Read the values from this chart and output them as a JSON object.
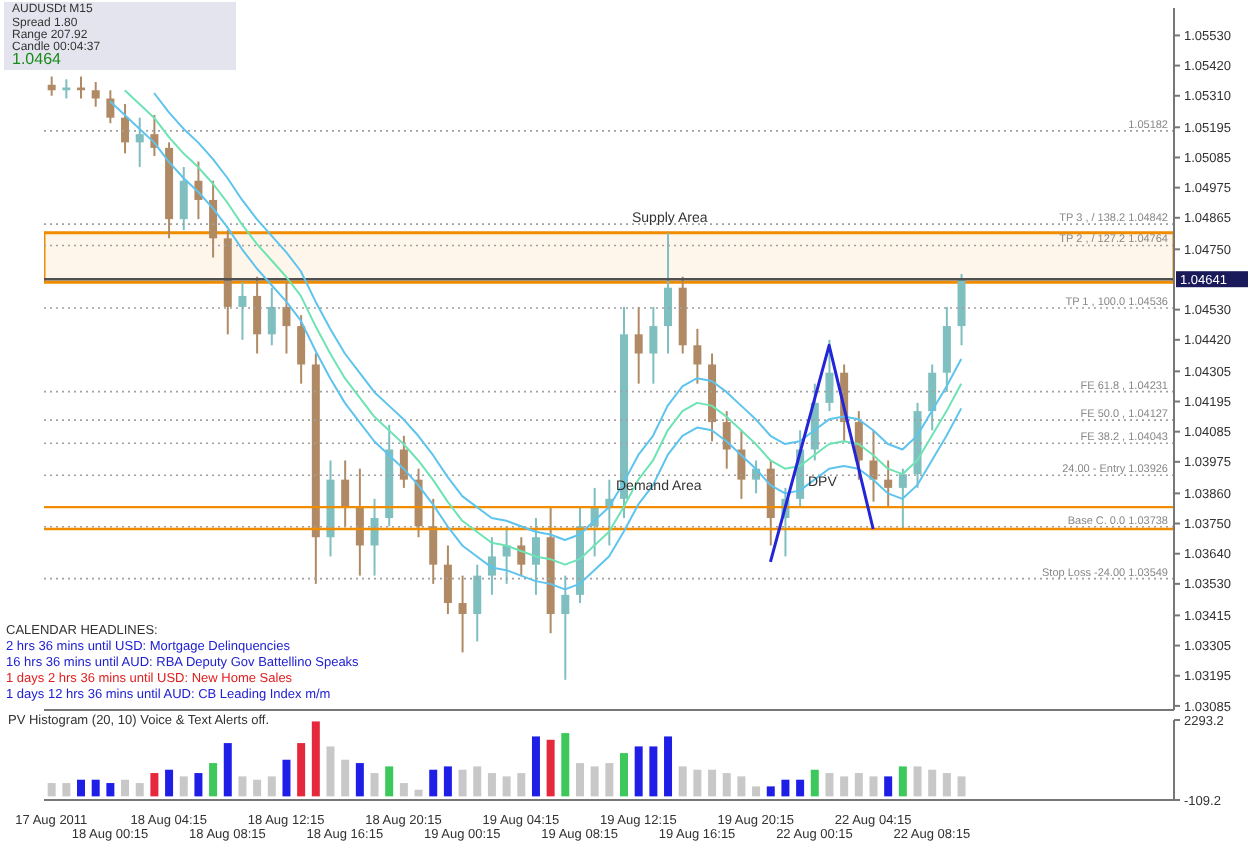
{
  "chart_data": [
    {
      "type": "candlestick",
      "title": "AUDUSDt  M15",
      "categories": [
        null,
        null,
        null,
        null,
        null,
        null,
        null,
        null,
        null,
        null,
        null,
        null,
        null,
        null,
        null,
        null,
        null,
        null,
        null,
        null,
        null,
        null,
        null,
        null,
        null,
        null,
        null,
        null,
        null,
        null,
        null,
        null,
        null,
        null,
        null,
        null,
        null,
        null,
        null,
        null,
        null,
        null,
        null,
        null,
        null,
        null,
        null,
        null,
        null,
        null,
        null,
        null,
        null,
        null,
        null,
        null,
        null,
        null,
        null,
        null,
        null,
        null,
        null,
        null,
        null,
        null,
        null,
        null,
        null,
        null,
        null,
        null,
        null,
        null,
        null,
        null,
        null
      ],
      "ohlc": [
        [
          1.0535,
          1.0538,
          1.0531,
          1.0533
        ],
        [
          1.0533,
          1.0537,
          1.053,
          1.0534
        ],
        [
          1.0534,
          1.0538,
          1.053,
          1.0533
        ],
        [
          1.0533,
          1.0536,
          1.0527,
          1.053
        ],
        [
          1.053,
          1.0533,
          1.0521,
          1.0523
        ],
        [
          1.0523,
          1.0528,
          1.051,
          1.0514
        ],
        [
          1.0514,
          1.0523,
          1.0505,
          1.0517
        ],
        [
          1.0517,
          1.0524,
          1.0509,
          1.0512
        ],
        [
          1.0512,
          1.0514,
          1.0479,
          1.0486
        ],
        [
          1.0486,
          1.0505,
          1.0482,
          1.05
        ],
        [
          1.05,
          1.0507,
          1.0486,
          1.0493
        ],
        [
          1.0493,
          1.05,
          1.0472,
          1.0479
        ],
        [
          1.0479,
          1.0482,
          1.0444,
          1.0454
        ],
        [
          1.0454,
          1.0463,
          1.0442,
          1.0458
        ],
        [
          1.0458,
          1.0465,
          1.0437,
          1.0444
        ],
        [
          1.0444,
          1.0461,
          1.044,
          1.0454
        ],
        [
          1.0454,
          1.0463,
          1.0437,
          1.0447
        ],
        [
          1.0447,
          1.0451,
          1.0426,
          1.0433
        ],
        [
          1.0433,
          1.0437,
          1.0353,
          1.037
        ],
        [
          1.037,
          1.0398,
          1.0363,
          1.0391
        ],
        [
          1.0391,
          1.0398,
          1.0374,
          1.0381
        ],
        [
          1.0381,
          1.0395,
          1.0356,
          1.0367
        ],
        [
          1.0367,
          1.0384,
          1.0356,
          1.0377
        ],
        [
          1.0377,
          1.0411,
          1.0374,
          1.0402
        ],
        [
          1.0402,
          1.0407,
          1.0388,
          1.0391
        ],
        [
          1.0391,
          1.0395,
          1.037,
          1.0374
        ],
        [
          1.0374,
          1.0384,
          1.0353,
          1.036
        ],
        [
          1.036,
          1.0367,
          1.0342,
          1.0346
        ],
        [
          1.0346,
          1.0356,
          1.0328,
          1.0342
        ],
        [
          1.0342,
          1.036,
          1.0332,
          1.0356
        ],
        [
          1.0356,
          1.037,
          1.0349,
          1.0363
        ],
        [
          1.0363,
          1.0374,
          1.0353,
          1.0367
        ],
        [
          1.0367,
          1.037,
          1.0356,
          1.036
        ],
        [
          1.036,
          1.0377,
          1.0349,
          1.037
        ],
        [
          1.037,
          1.0381,
          1.0335,
          1.0342
        ],
        [
          1.0342,
          1.0356,
          1.0318,
          1.0349
        ],
        [
          1.0349,
          1.0381,
          1.0346,
          1.0374
        ],
        [
          1.0374,
          1.0388,
          1.0363,
          1.0381
        ],
        [
          1.0381,
          1.0391,
          1.0367,
          1.0384
        ],
        [
          1.0384,
          1.0454,
          1.0377,
          1.0444
        ],
        [
          1.0444,
          1.0454,
          1.0426,
          1.0437
        ],
        [
          1.0437,
          1.0454,
          1.0426,
          1.0447
        ],
        [
          1.0447,
          1.0481,
          1.0437,
          1.0461
        ],
        [
          1.0461,
          1.0465,
          1.0437,
          1.044
        ],
        [
          1.044,
          1.0446,
          1.0426,
          1.0433
        ],
        [
          1.0433,
          1.0437,
          1.0405,
          1.0412
        ],
        [
          1.0412,
          1.0416,
          1.0395,
          1.0402
        ],
        [
          1.0402,
          1.0409,
          1.0384,
          1.0391
        ],
        [
          1.0391,
          1.0398,
          1.0386,
          1.0395
        ],
        [
          1.0395,
          1.0398,
          1.0367,
          1.0377
        ],
        [
          1.0377,
          1.0388,
          1.0363,
          1.0384
        ],
        [
          1.0384,
          1.0409,
          1.0381,
          1.0402
        ],
        [
          1.0402,
          1.0426,
          1.0398,
          1.0419
        ],
        [
          1.0419,
          1.0442,
          1.0416,
          1.043
        ],
        [
          1.043,
          1.0433,
          1.0405,
          1.0412
        ],
        [
          1.0412,
          1.0416,
          1.0391,
          1.0398
        ],
        [
          1.0398,
          1.0409,
          1.0383,
          1.0391
        ],
        [
          1.0391,
          1.0398,
          1.0381,
          1.0388
        ],
        [
          1.0388,
          1.0395,
          1.0373,
          1.0393
        ],
        [
          1.0393,
          1.0419,
          1.0388,
          1.0416
        ],
        [
          1.0416,
          1.0433,
          1.0409,
          1.043
        ],
        [
          1.043,
          1.0454,
          1.0423,
          1.0447
        ],
        [
          1.0447,
          1.0466,
          1.044,
          1.0464
        ],
        null,
        null,
        null,
        null,
        null,
        null,
        null,
        null,
        null,
        null,
        null,
        null,
        null,
        null
      ],
      "colors": [
        "#b08a64",
        "#7fbfbf",
        "#b08a64",
        "#b08a64",
        "#b08a64",
        "#b08a64",
        "#7fbfbf",
        "#b08a64",
        "#b08a64",
        "#7fbfbf",
        "#b08a64",
        "#b08a64",
        "#b08a64",
        "#7fbfbf",
        "#b08a64",
        "#7fbfbf",
        "#b08a64",
        "#b08a64",
        "#b08a64",
        "#7fbfbf",
        "#b08a64",
        "#b08a64",
        "#7fbfbf",
        "#7fbfbf",
        "#b08a64",
        "#b08a64",
        "#b08a64",
        "#b08a64",
        "#b08a64",
        "#7fbfbf",
        "#7fbfbf",
        "#7fbfbf",
        "#b08a64",
        "#7fbfbf",
        "#b08a64",
        "#7fbfbf",
        "#7fbfbf",
        "#7fbfbf",
        "#7fbfbf",
        "#7fbfbf",
        "#b08a64",
        "#7fbfbf",
        "#7fbfbf",
        "#b08a64",
        "#b08a64",
        "#b08a64",
        "#b08a64",
        "#b08a64",
        "#7fbfbf",
        "#b08a64",
        "#7fbfbf",
        "#7fbfbf",
        "#7fbfbf",
        "#7fbfbf",
        "#b08a64",
        "#b08a64",
        "#b08a64",
        "#b08a64",
        "#7fbfbf",
        "#7fbfbf",
        "#7fbfbf",
        "#7fbfbf",
        "#7fbfbf",
        null,
        null,
        null,
        null,
        null,
        null,
        null,
        null,
        null,
        null,
        null,
        null,
        null,
        null
      ],
      "series": [
        {
          "type": "line",
          "color": "#5ec4ee",
          "values": [
            null,
            null,
            null,
            null,
            null,
            null,
            null,
            1.0532,
            1.0525,
            1.0519,
            1.0514,
            1.0508,
            1.0501,
            1.0493,
            1.0486,
            1.048,
            1.0474,
            1.0467,
            1.0456,
            1.0446,
            1.0437,
            1.043,
            1.0423,
            1.0418,
            1.0413,
            1.0407,
            1.04,
            1.0392,
            1.0385,
            1.0381,
            1.0377,
            1.0376,
            1.0374,
            1.0372,
            1.0371,
            1.0369,
            1.0371,
            1.0376,
            1.0381,
            1.039,
            1.04,
            1.0407,
            1.0418,
            1.0425,
            1.0428,
            1.0427,
            1.0423,
            1.0418,
            1.0413,
            1.0407,
            1.0404,
            1.0405,
            1.0409,
            1.0413,
            1.0414,
            1.0413,
            1.0409,
            1.0404,
            1.0402,
            1.0407,
            1.0416,
            1.0425,
            1.0435,
            null,
            null,
            null,
            null,
            null,
            null,
            null,
            null,
            null,
            null,
            null,
            null,
            null,
            null
          ]
        },
        {
          "type": "line",
          "color": "#6ee3b4",
          "values": [
            null,
            null,
            null,
            null,
            null,
            1.0533,
            1.0528,
            1.0523,
            1.0516,
            1.051,
            1.0505,
            1.0499,
            1.0492,
            1.0484,
            1.0477,
            1.0471,
            1.0465,
            1.0458,
            1.0447,
            1.0437,
            1.0428,
            1.0421,
            1.0414,
            1.0409,
            1.0404,
            1.0398,
            1.0391,
            1.0383,
            1.0376,
            1.0372,
            1.0368,
            1.0367,
            1.0365,
            1.0363,
            1.0362,
            1.036,
            1.0362,
            1.0367,
            1.0372,
            1.0381,
            1.0391,
            1.0398,
            1.0409,
            1.0416,
            1.0419,
            1.0418,
            1.0414,
            1.0409,
            1.0404,
            1.0398,
            1.0395,
            1.0396,
            1.04,
            1.0404,
            1.0405,
            1.0404,
            1.04,
            1.0395,
            1.0393,
            1.0398,
            1.0407,
            1.0416,
            1.0426,
            null,
            null,
            null,
            null,
            null,
            null,
            null,
            null,
            null,
            null,
            null,
            null,
            null,
            null
          ]
        },
        {
          "type": "line",
          "color": "#5ec4ee",
          "values": [
            null,
            null,
            null,
            null,
            1.0529,
            1.0524,
            1.0519,
            1.0514,
            1.0507,
            1.0501,
            1.0496,
            1.049,
            1.0483,
            1.0475,
            1.0468,
            1.0462,
            1.0456,
            1.0449,
            1.0438,
            1.0428,
            1.0419,
            1.0412,
            1.0405,
            1.04,
            1.0395,
            1.0389,
            1.0382,
            1.0374,
            1.0367,
            1.0363,
            1.0359,
            1.0358,
            1.0356,
            1.0354,
            1.0353,
            1.0351,
            1.0353,
            1.0358,
            1.0363,
            1.0372,
            1.0382,
            1.0389,
            1.04,
            1.0407,
            1.041,
            1.0409,
            1.0405,
            1.04,
            1.0395,
            1.0389,
            1.0386,
            1.0387,
            1.0391,
            1.0395,
            1.0396,
            1.0395,
            1.0391,
            1.0386,
            1.0384,
            1.0389,
            1.0398,
            1.0407,
            1.0417,
            null,
            null,
            null,
            null,
            null,
            null,
            null,
            null,
            null,
            null,
            null,
            null,
            null,
            null
          ]
        },
        {
          "type": "line",
          "color": "#2424d8",
          "values": [
            null,
            null,
            null,
            null,
            null,
            null,
            null,
            null,
            null,
            null,
            null,
            null,
            null,
            null,
            null,
            null,
            null,
            null,
            null,
            null,
            null,
            null,
            null,
            null,
            null,
            null,
            null,
            null,
            null,
            null,
            null,
            null,
            null,
            null,
            null,
            null,
            null,
            null,
            null,
            null,
            null,
            null,
            null,
            null,
            null,
            null,
            null,
            null,
            null,
            1.0361,
            null,
            null,
            null,
            1.044,
            null,
            null,
            1.0373,
            null,
            null,
            null,
            null,
            null,
            null,
            null,
            null,
            null,
            null,
            null,
            null,
            null,
            null,
            null,
            null,
            null,
            null,
            null,
            null
          ]
        }
      ],
      "ylim": [
        1.0307,
        1.0563
      ],
      "yticks": [
        {
          "value": 1.0553,
          "label": "1.05530"
        },
        {
          "value": 1.0542,
          "label": "1.05420"
        },
        {
          "value": 1.0531,
          "label": "1.05310"
        },
        {
          "value": 1.05195,
          "label": "1.05195"
        },
        {
          "value": 1.05085,
          "label": "1.05085"
        },
        {
          "value": 1.04975,
          "label": "1.04975"
        },
        {
          "value": 1.04865,
          "label": "1.04865"
        },
        {
          "value": 1.0475,
          "label": "1.04750"
        },
        {
          "value": 1.0453,
          "label": "1.04530"
        },
        {
          "value": 1.0442,
          "label": "1.04420"
        },
        {
          "value": 1.04305,
          "label": "1.04305"
        },
        {
          "value": 1.04195,
          "label": "1.04195"
        },
        {
          "value": 1.04085,
          "label": "1.04085"
        },
        {
          "value": 1.03975,
          "label": "1.03975"
        },
        {
          "value": 1.0386,
          "label": "1.03860"
        },
        {
          "value": 1.0375,
          "label": "1.03750"
        },
        {
          "value": 1.0364,
          "label": "1.03640"
        },
        {
          "value": 1.0353,
          "label": "1.03530"
        },
        {
          "value": 1.03415,
          "label": "1.03415"
        },
        {
          "value": 1.03305,
          "label": "1.03305"
        },
        {
          "value": 1.03195,
          "label": "1.03195"
        },
        {
          "value": 1.03085,
          "label": "1.03085"
        }
      ],
      "tick_labels": "y",
      "ref_lines": [
        {
          "axis": "y",
          "value": 1.05182,
          "label": "1.05182",
          "color": "#a0a0a0",
          "line_style": "dotted"
        },
        {
          "axis": "y",
          "value": 1.04842,
          "label": "TP 3 , / 138.2 1.04842",
          "color": "#a0a0a0",
          "line_style": "dotted"
        },
        {
          "axis": "y",
          "value": 1.04764,
          "label": "TP 2 , / 127.2 1.04764",
          "color": "#a0a0a0",
          "line_style": "dotted"
        },
        {
          "axis": "y",
          "value": 1.04536,
          "label": "TP 1 , 100.0 1.04536",
          "color": "#a0a0a0",
          "line_style": "dotted"
        },
        {
          "axis": "y",
          "value": 1.04231,
          "label": "FE 61.8 , 1.04231",
          "color": "#a0a0a0",
          "line_style": "dotted"
        },
        {
          "axis": "y",
          "value": 1.04127,
          "label": "FE 50.0 , 1.04127",
          "color": "#a0a0a0",
          "line_style": "dotted"
        },
        {
          "axis": "y",
          "value": 1.04043,
          "label": "FE 38.2 , 1.04043",
          "color": "#a0a0a0",
          "line_style": "dotted"
        },
        {
          "axis": "y",
          "value": 1.03926,
          "label": "24.00 - Entry 1.03926",
          "color": "#a0a0a0",
          "line_style": "dotted"
        },
        {
          "axis": "y",
          "value": 1.03738,
          "label": "Base C. 0.0 1.03738",
          "color": "#a0a0a0",
          "line_style": "dotted"
        },
        {
          "axis": "y",
          "value": 1.03549,
          "label": "Stop Loss -24.00 1.03549",
          "color": "#a0a0a0",
          "line_style": "dotted"
        },
        {
          "axis": "y",
          "value": 1.0381,
          "color": "#f08c00",
          "line_style": "solid"
        },
        {
          "axis": "y",
          "value": 1.0373,
          "color": "#f08c00",
          "line_style": "solid"
        },
        {
          "axis": "y",
          "value": 1.04641,
          "label": "1.04641",
          "color": "#505050",
          "line_style": "solid"
        }
      ],
      "bands": [
        {
          "axis": "y",
          "from": 1.0463,
          "to": 1.0481,
          "color": "#f08c00"
        }
      ],
      "annotations": [
        "Spread  1.80",
        "Range  207.92",
        "Candle  00:04:37",
        "1.0464",
        "Supply Area",
        "Demand Area",
        "DPV",
        "CALENDAR HEADLINES:",
        "2 hrs 36 mins until USD: Mortgage Delinquencies",
        "16 hrs 36 mins until AUD: RBA Deputy Gov Battellino Speaks",
        "1 days 2 hrs 36 mins until USD: New Home Sales",
        "1 days 12 hrs 36 mins until AUD: CB Leading Index m/m"
      ],
      "grid": false,
      "legend": false
    },
    {
      "type": "bar",
      "categories": [
        "17 Aug 2011",
        null,
        null,
        null,
        "18 Aug 00:15",
        null,
        null,
        null,
        "18 Aug 04:15",
        null,
        null,
        null,
        "18 Aug 08:15",
        null,
        null,
        null,
        "18 Aug 12:15",
        null,
        null,
        null,
        "18 Aug 16:15",
        null,
        null,
        null,
        "18 Aug 20:15",
        null,
        null,
        null,
        "19 Aug 00:15",
        null,
        null,
        null,
        "19 Aug 04:15",
        null,
        null,
        null,
        "19 Aug 08:15",
        null,
        null,
        null,
        "19 Aug 12:15",
        null,
        null,
        null,
        "19 Aug 16:15",
        null,
        null,
        null,
        "19 Aug 20:15",
        null,
        null,
        null,
        "22 Aug 00:15",
        null,
        null,
        null,
        "22 Aug 04:15",
        null,
        null,
        null,
        "22 Aug 08:15",
        null,
        null,
        null,
        null,
        null,
        null,
        null,
        null,
        null,
        null,
        null,
        null,
        null,
        null,
        null,
        null
      ],
      "values": [
        400,
        400,
        500,
        500,
        400,
        500,
        400,
        700,
        800,
        600,
        700,
        1000,
        1600,
        600,
        500,
        600,
        1100,
        1600,
        2250,
        1500,
        1100,
        1000,
        700,
        900,
        400,
        200,
        800,
        900,
        800,
        900,
        700,
        600,
        700,
        1800,
        1700,
        1900,
        1000,
        900,
        1000,
        1300,
        1500,
        1500,
        1800,
        900,
        800,
        800,
        700,
        600,
        300,
        300,
        500,
        500,
        800,
        700,
        600,
        700,
        600,
        600,
        900,
        900,
        800,
        700,
        600,
        null,
        null,
        null,
        null,
        null,
        null,
        null,
        null,
        null,
        null,
        null,
        null,
        null,
        null
      ],
      "colors": [
        "#c8c8c8",
        "#c8c8c8",
        "#1e1ee6",
        "#1e1ee6",
        "#1e1ee6",
        "#c8c8c8",
        "#c8c8c8",
        "#e6283c",
        "#1e1ee6",
        "#c8c8c8",
        "#1e1ee6",
        "#3cc85a",
        "#1e1ee6",
        "#c8c8c8",
        "#c8c8c8",
        "#c8c8c8",
        "#1e1ee6",
        "#e6283c",
        "#e6283c",
        "#c8c8c8",
        "#c8c8c8",
        "#1e1ee6",
        "#c8c8c8",
        "#3cc85a",
        "#c8c8c8",
        "#c8c8c8",
        "#1e1ee6",
        "#1e1ee6",
        "#c8c8c8",
        "#c8c8c8",
        "#c8c8c8",
        "#c8c8c8",
        "#c8c8c8",
        "#1e1ee6",
        "#e6283c",
        "#3cc85a",
        "#c8c8c8",
        "#c8c8c8",
        "#c8c8c8",
        "#3cc85a",
        "#1e1ee6",
        "#1e1ee6",
        "#1e1ee6",
        "#c8c8c8",
        "#c8c8c8",
        "#c8c8c8",
        "#c8c8c8",
        "#c8c8c8",
        "#c8c8c8",
        "#1e1ee6",
        "#1e1ee6",
        "#1e1ee6",
        "#3cc85a",
        "#c8c8c8",
        "#c8c8c8",
        "#c8c8c8",
        "#c8c8c8",
        "#1e1ee6",
        "#3cc85a",
        "#c8c8c8",
        "#c8c8c8",
        "#c8c8c8",
        "#c8c8c8",
        null,
        null,
        null,
        null,
        null,
        null,
        null,
        null,
        null,
        null,
        null,
        null,
        null,
        null
      ],
      "ylim": [
        -109.2,
        2293.2
      ],
      "yticks": [
        2293.2,
        -109.2
      ],
      "annotations": [
        "PV Histogram (20, 10)  Voice & Text Alerts off."
      ],
      "grid": false,
      "legend": false
    }
  ]
}
